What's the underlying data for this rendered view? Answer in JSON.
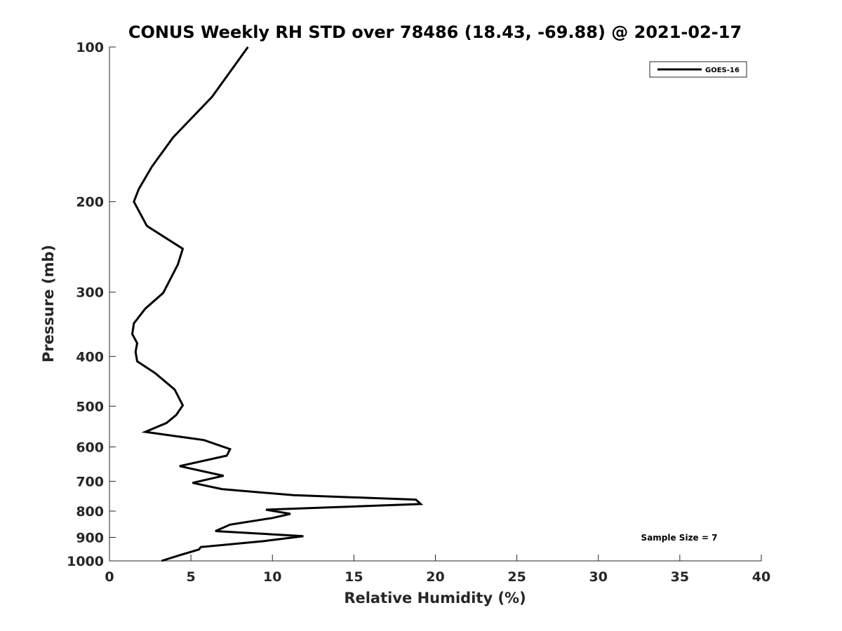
{
  "chart_data": {
    "type": "line",
    "title": "CONUS Weekly RH STD over 78486 (18.43, -69.88) @ 2021-02-17",
    "xlabel": "Relative Humidity (%)",
    "ylabel": "Pressure (mb)",
    "xlim": [
      0,
      40
    ],
    "ylim": [
      100,
      1000
    ],
    "yscale": "log",
    "y_reversed": true,
    "grid": false,
    "x_ticks": [
      0,
      5,
      10,
      15,
      20,
      25,
      30,
      35,
      40
    ],
    "y_ticks": [
      100,
      200,
      300,
      400,
      500,
      600,
      700,
      800,
      900,
      1000
    ],
    "legend_position": "top-right",
    "series": [
      {
        "name": "GOES-16",
        "color": "#000000",
        "x": [
          8.5,
          6.3,
          3.9,
          2.6,
          1.8,
          1.5,
          2.3,
          4.5,
          4.2,
          3.3,
          2.2,
          1.5,
          1.4,
          1.7,
          1.6,
          1.7,
          2.8,
          4.0,
          4.5,
          4.1,
          3.5,
          2.2,
          5.8,
          7.4,
          7.2,
          4.3,
          7.0,
          5.1,
          6.9,
          11.3,
          18.8,
          19.1,
          9.6,
          11.1,
          10.0,
          7.4,
          6.5,
          11.9,
          9.5,
          5.6,
          5.5,
          4.3,
          3.2
        ],
        "y": [
          100,
          125,
          150,
          171,
          189,
          200,
          223,
          247,
          265,
          301,
          323,
          345,
          362,
          377,
          392,
          409,
          431,
          464,
          498,
          520,
          539,
          561,
          582,
          606,
          624,
          654,
          683,
          705,
          725,
          745,
          760,
          775,
          795,
          810,
          825,
          850,
          875,
          895,
          915,
          940,
          950,
          975,
          1000
        ]
      }
    ],
    "annotations": [
      "Sample Size = 7"
    ]
  }
}
